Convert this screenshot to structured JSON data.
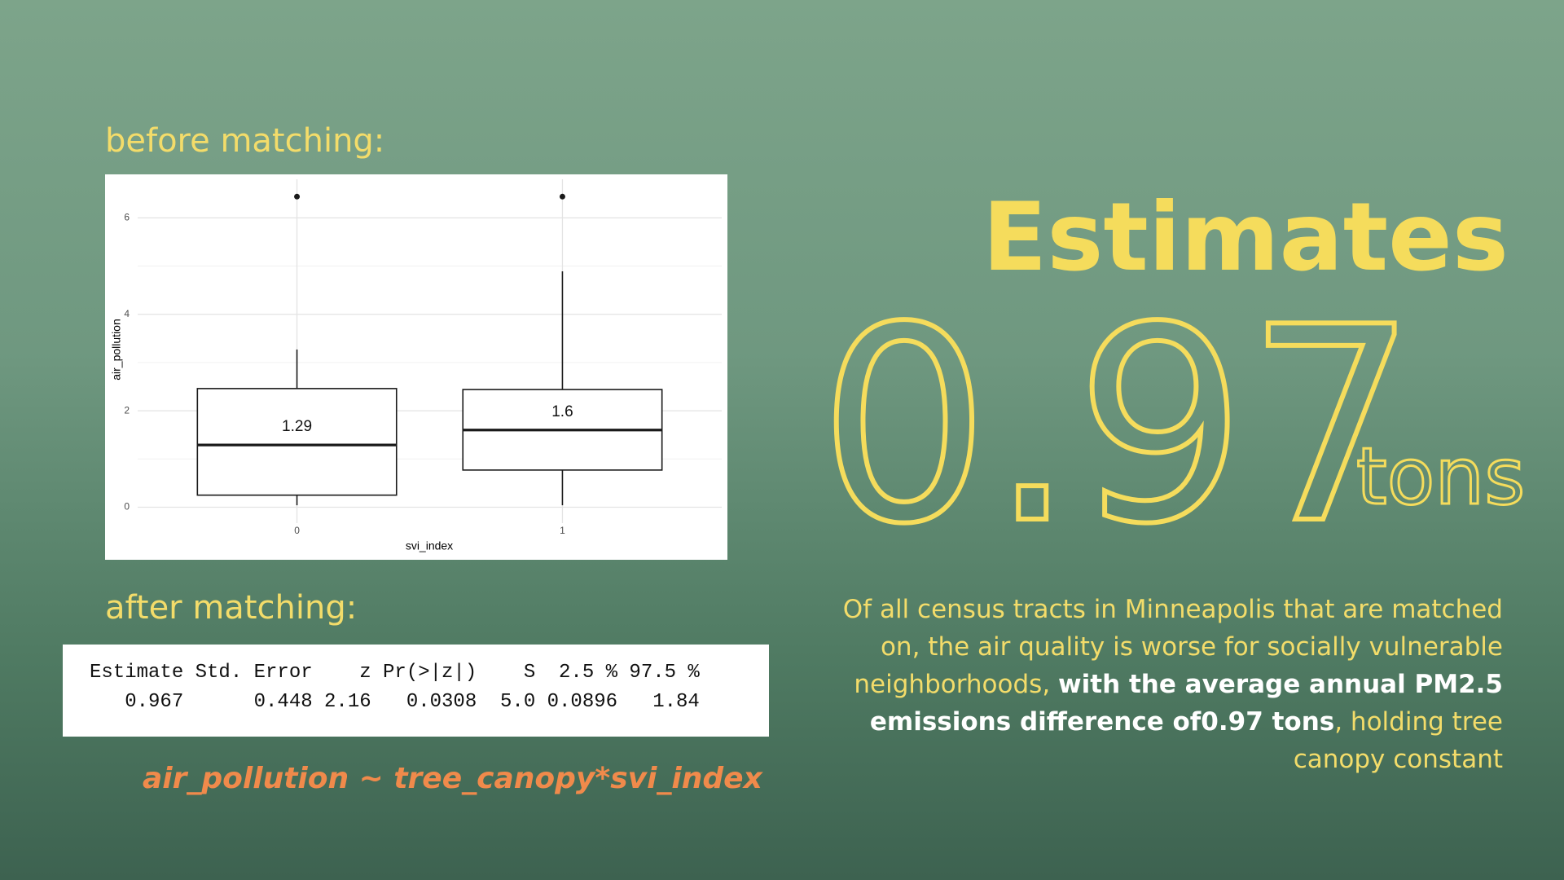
{
  "labels": {
    "before": "before matching:",
    "after": "after matching:",
    "formula": "air_pollution ~ tree_canopy*svi_index"
  },
  "chart_data": {
    "type": "box",
    "x_label": "svi_index",
    "y_label": "air_pollution",
    "categories": [
      "0",
      "1"
    ],
    "boxes": [
      {
        "whislo": 0.04,
        "q1": 0.25,
        "median": 1.29,
        "q3": 2.46,
        "whishi": 3.27,
        "outliers": [
          6.44
        ]
      },
      {
        "whislo": 0.04,
        "q1": 0.77,
        "median": 1.6,
        "q3": 2.44,
        "whishi": 4.89,
        "outliers": [
          6.44
        ]
      }
    ],
    "ylim": [
      -0.33,
      6.8
    ],
    "yticks": [
      0,
      2,
      4,
      6
    ],
    "minor_yticks": [
      1,
      3,
      5
    ],
    "grid": true,
    "color": "#1a1a1a"
  },
  "table": {
    "columns": [
      "Estimate",
      "Std. Error",
      "z",
      "Pr(>|z|)",
      "S",
      "2.5 %",
      "97.5 %"
    ],
    "rows": [
      [
        "0.967",
        "0.448",
        "2.16",
        "0.0308",
        "5.0",
        "0.0896",
        "1.84"
      ]
    ]
  },
  "headline": {
    "title": "Estimates",
    "number": "0.97",
    "unit": "tons"
  },
  "summary": {
    "part1": "Of all census tracts in Minneapolis that are matched on, the air quality is worse for socially vulnerable neighborhoods, ",
    "bold": "with the average annual PM2.5 emissions difference of0.97 tons",
    "part2": ", holding tree canopy constant"
  }
}
